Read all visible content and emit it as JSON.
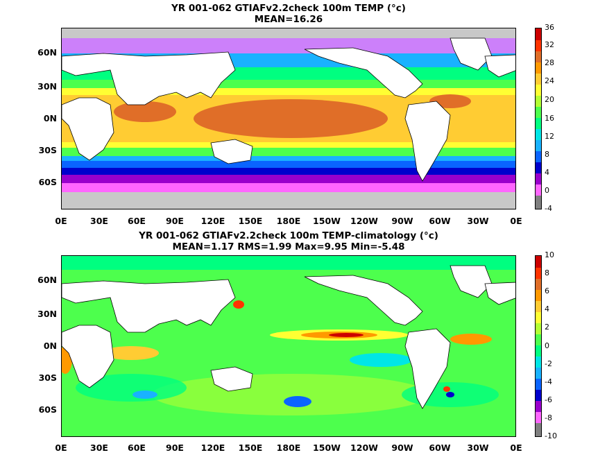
{
  "panel1": {
    "title": "YR 001-062 GTIAFv2.2check 100m TEMP (°c)",
    "subtitle": "MEAN=16.26",
    "colorbar_ticks": [
      "36",
      "32",
      "28",
      "24",
      "20",
      "16",
      "12",
      "8",
      "4",
      "0",
      "-4"
    ]
  },
  "panel2": {
    "title": "YR 001-062 GTIAFv2.2check 100m TEMP-climatology (°c)",
    "subtitle": "MEAN=1.17   RMS=1.99   Max=9.95   Min=-5.48",
    "colorbar_ticks": [
      "10",
      "8",
      "6",
      "4",
      "2",
      "0",
      "-2",
      "-4",
      "-6",
      "-8",
      "-10"
    ]
  },
  "lat_ticks": [
    "60N",
    "30N",
    "0N",
    "30S",
    "60S"
  ],
  "lon_ticks": [
    "0E",
    "30E",
    "60E",
    "90E",
    "120E",
    "150E",
    "180E",
    "150W",
    "120W",
    "90W",
    "60W",
    "30W",
    "0E"
  ],
  "colors": {
    "land": "#ffffff",
    "missing": "#c8c8c8",
    "scale": [
      "#7f7f7f",
      "#ff66ff",
      "#9900cc",
      "#0000cc",
      "#0a64ff",
      "#19b2ff",
      "#00e6e6",
      "#00ff80",
      "#4dff4d",
      "#b3ff33",
      "#ffff33",
      "#ffcc33",
      "#ff9900",
      "#e06e28",
      "#ff3300",
      "#cc0000"
    ]
  }
}
